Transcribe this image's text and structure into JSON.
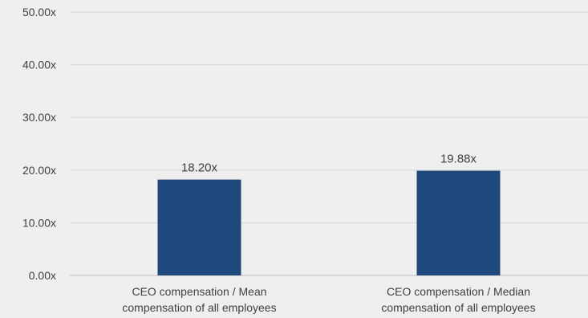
{
  "chart_data": {
    "type": "bar",
    "categories": [
      [
        "CEO compensation / Mean",
        "compensation of all employees"
      ],
      [
        "CEO compensation / Median",
        "compensation of all employees"
      ]
    ],
    "values": [
      18.2,
      19.88
    ],
    "data_labels": [
      "18.20x",
      "19.88x"
    ],
    "ylim": [
      0,
      50
    ],
    "yticks": [
      0,
      10,
      20,
      30,
      40,
      50
    ],
    "ytick_labels": [
      "0.00x",
      "10.00x",
      "20.00x",
      "30.00x",
      "40.00x",
      "50.00x"
    ],
    "title": "",
    "xlabel": "",
    "ylabel": "",
    "grid": true,
    "legend": "none",
    "bar_color": "#1f497d",
    "background_color": "#efefef"
  }
}
